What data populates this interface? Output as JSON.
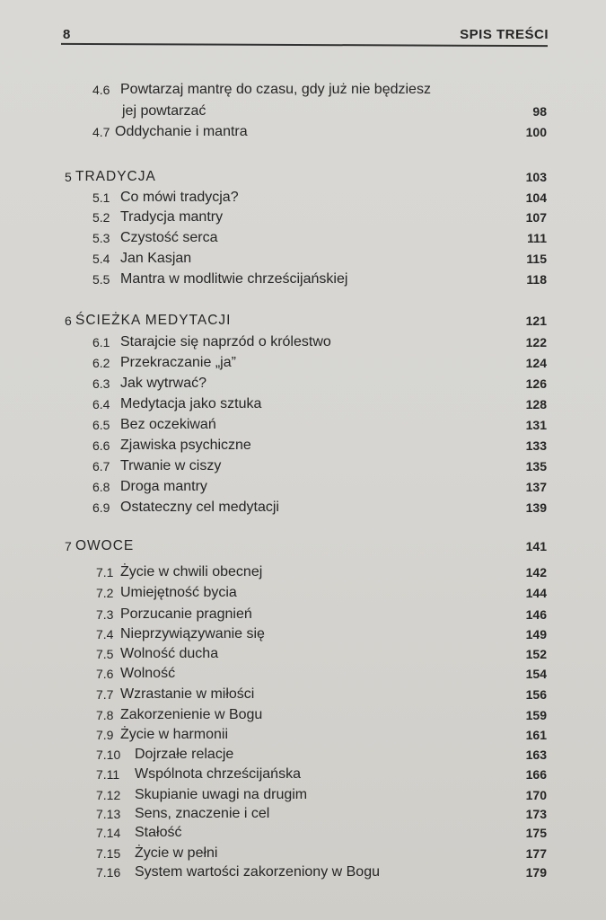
{
  "header": {
    "page_number": "8",
    "running_title": "SPIS TREŚCI"
  },
  "entries": [
    {
      "num": "4.6",
      "title": "Powtarzaj mantrę do czasu, gdy już nie będziesz",
      "page": ""
    },
    {
      "num": "",
      "title": "jej powtarzać",
      "page": "98"
    },
    {
      "num": "4.7",
      "title": "Oddychanie i mantra",
      "page": "100"
    },
    {
      "num": "5",
      "title": "TRADYCJA",
      "page": "103",
      "chapter": true
    },
    {
      "num": "5.1",
      "title": "Co mówi tradycja?",
      "page": "104"
    },
    {
      "num": "5.2",
      "title": "Tradycja mantry",
      "page": "107"
    },
    {
      "num": "5.3",
      "title": "Czystość serca",
      "page": "111"
    },
    {
      "num": "5.4",
      "title": "Jan Kasjan",
      "page": "115"
    },
    {
      "num": "5.5",
      "title": "Mantra w modlitwie chrześcijańskiej",
      "page": "118"
    },
    {
      "num": "6",
      "title": "ŚCIEŻKA MEDYTACJI",
      "page": "121",
      "chapter": true
    },
    {
      "num": "6.1",
      "title": "Starajcie się naprzód o królestwo",
      "page": "122"
    },
    {
      "num": "6.2",
      "title": "Przekraczanie „ja”",
      "page": "124"
    },
    {
      "num": "6.3",
      "title": "Jak wytrwać?",
      "page": "126"
    },
    {
      "num": "6.4",
      "title": "Medytacja jako sztuka",
      "page": "128"
    },
    {
      "num": "6.5",
      "title": "Bez oczekiwań",
      "page": "131"
    },
    {
      "num": "6.6",
      "title": "Zjawiska psychiczne",
      "page": "133"
    },
    {
      "num": "6.7",
      "title": "Trwanie w ciszy",
      "page": "135"
    },
    {
      "num": "6.8",
      "title": "Droga mantry",
      "page": "137"
    },
    {
      "num": "6.9",
      "title": "Ostateczny cel medytacji",
      "page": "139"
    },
    {
      "num": "7",
      "title": "OWOCE",
      "page": "141",
      "chapter": true
    },
    {
      "num": "7.1",
      "title": "Życie w chwili obecnej",
      "page": "142"
    },
    {
      "num": "7.2",
      "title": "Umiejętność bycia",
      "page": "144"
    },
    {
      "num": "7.3",
      "title": "Porzucanie pragnień",
      "page": "146"
    },
    {
      "num": "7.4",
      "title": "Nieprzywiązywanie się",
      "page": "149"
    },
    {
      "num": "7.5",
      "title": "Wolność ducha",
      "page": "152"
    },
    {
      "num": "7.6",
      "title": "Wolność",
      "page": "154"
    },
    {
      "num": "7.7",
      "title": "Wzrastanie w miłości",
      "page": "156"
    },
    {
      "num": "7.8",
      "title": "Zakorzenienie w Bogu",
      "page": "159"
    },
    {
      "num": "7.9",
      "title": "Życie w harmonii",
      "page": "161"
    },
    {
      "num": "7.10",
      "title": "Dojrzałe relacje",
      "page": "163"
    },
    {
      "num": "7.11",
      "title": "Wspólnota chrześcijańska",
      "page": "166"
    },
    {
      "num": "7.12",
      "title": "Skupianie uwagi na drugim",
      "page": "170"
    },
    {
      "num": "7.13",
      "title": "Sens, znaczenie i cel",
      "page": "173"
    },
    {
      "num": "7.14",
      "title": "Stałość",
      "page": "175"
    },
    {
      "num": "7.15",
      "title": "Życie w pełni",
      "page": "177"
    },
    {
      "num": "7.16",
      "title": "System wartości zakorzeniony w Bogu",
      "page": "179"
    }
  ]
}
